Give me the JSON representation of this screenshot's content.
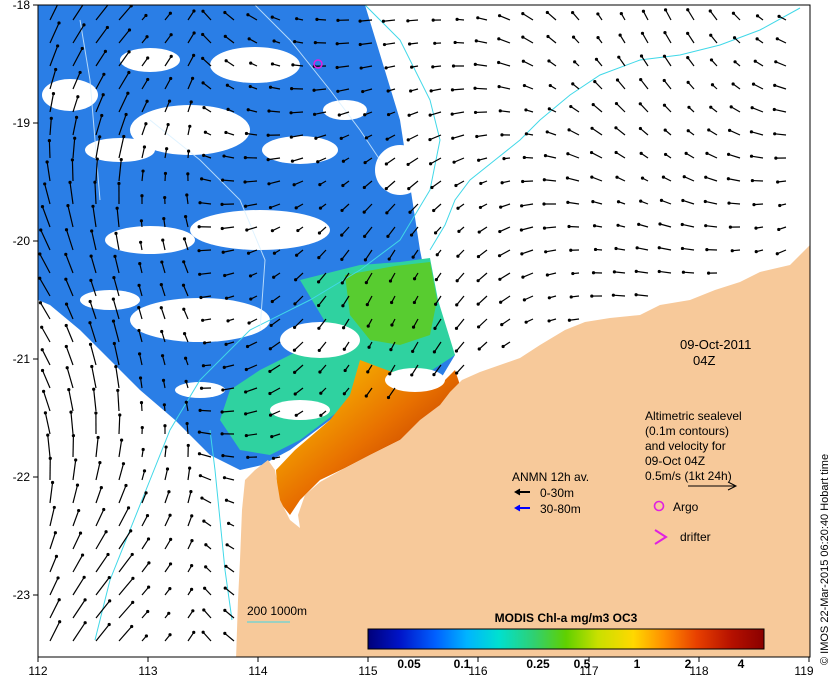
{
  "map": {
    "date_label": "09-Oct-2011",
    "time_label": "04Z",
    "credit": "© IMOS 22-Mar-2015 06:20:40 Hobart time",
    "colors": {
      "land": "#f7c99a",
      "contour_line": "#40d8e8",
      "white_contour": "#ffffff",
      "arrow_shallow": "#000000",
      "arrow_deep": "#0000ff",
      "argo": "#e020e0",
      "drifter": "#e020e0"
    }
  },
  "axes": {
    "x_ticks": [
      "112",
      "113",
      "114",
      "115",
      "116",
      "117",
      "118",
      "119"
    ],
    "y_ticks": [
      "-18",
      "-19",
      "-20",
      "-21",
      "-22",
      "-23"
    ]
  },
  "annotations": {
    "altimetry_lines": [
      "Altimetric sealevel",
      "(0.1m contours)",
      "and velocity for",
      "09-Oct 04Z"
    ],
    "scale_vector": "0.5m/s (1kt 24h)",
    "argo": "Argo",
    "drifter": "drifter",
    "anmn_title": "ANMN 12h av.",
    "anmn_shallow": "0-30m",
    "anmn_deep": "30-80m",
    "bathy_label": "200  1000m"
  },
  "colorbar": {
    "title": "MODIS Chl-a mg/m3 OC3",
    "tick_labels": [
      "0.05",
      "0.1",
      "0.25",
      "0.5",
      "1",
      "2",
      "4"
    ],
    "stops": [
      "#00007a",
      "#0014c8",
      "#0060ff",
      "#00b4ff",
      "#00e0d0",
      "#30d070",
      "#60d000",
      "#c8e000",
      "#ffd800",
      "#ff8c00",
      "#e84000",
      "#b41000",
      "#8a0000"
    ]
  }
}
